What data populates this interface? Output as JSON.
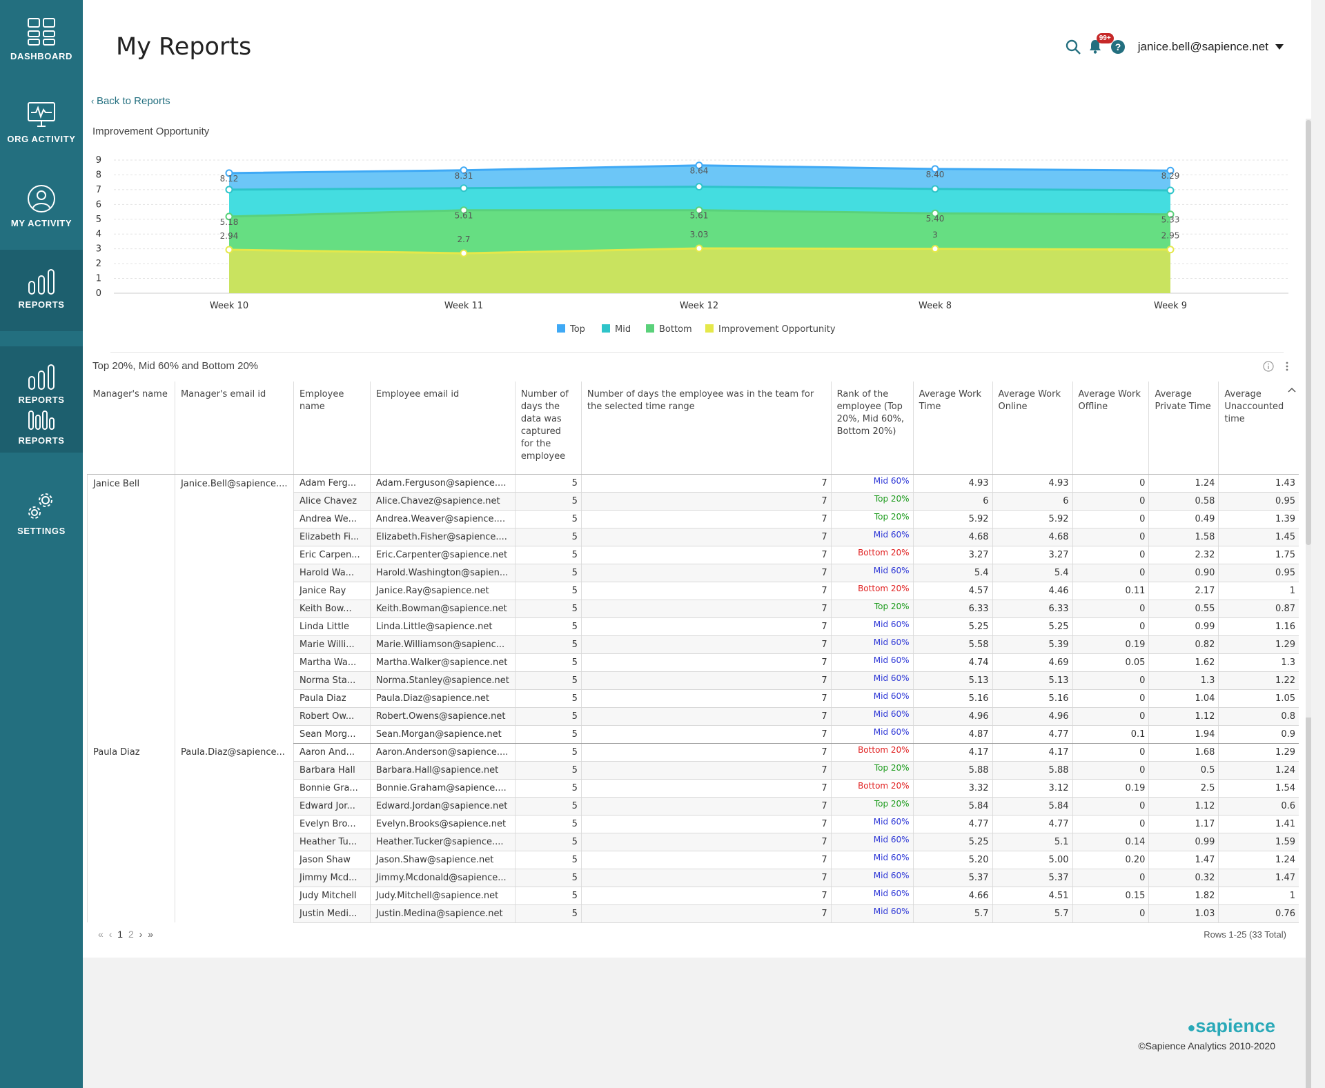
{
  "sidebar": {
    "items": [
      {
        "label": "DASHBOARD",
        "icon": "dashboard-icon"
      },
      {
        "label": "ORG ACTIVITY",
        "icon": "monitor-icon"
      },
      {
        "label": "MY ACTIVITY",
        "icon": "user-icon"
      },
      {
        "label": "REPORTS",
        "icon": "reports-icon"
      },
      {
        "label": "REPORTS",
        "icon": "reports-icon"
      },
      {
        "label": "REPORTS",
        "icon": "reports-icon"
      },
      {
        "label": "SETTINGS",
        "icon": "gear-icon"
      }
    ]
  },
  "header": {
    "title": "My Reports",
    "notifications_badge": "99+",
    "user": "janice.bell@sapience.net",
    "icons": [
      "search-icon",
      "bell-icon",
      "help-icon",
      "caret-down-icon"
    ]
  },
  "back_link": "Back to Reports",
  "chart_section": {
    "title": "Improvement Opportunity"
  },
  "chart_data": {
    "type": "area",
    "categories": [
      "Week 10",
      "Week 11",
      "Week 12",
      "Week 8",
      "Week 9"
    ],
    "ylim": [
      0,
      9
    ],
    "yticks": [
      "0",
      "1",
      "2",
      "3",
      "4",
      "5",
      "6",
      "7",
      "8",
      "9"
    ],
    "grid": true,
    "legend_position": "bottom",
    "series": [
      {
        "name": "Top",
        "color": "#6cc6f7",
        "line": "#3fa9f5",
        "values": [
          8.12,
          8.31,
          8.64,
          8.4,
          8.29
        ],
        "labels": [
          "8.12",
          "8.31",
          "8.64",
          "8.40",
          "8.29"
        ]
      },
      {
        "name": "Mid",
        "color": "#44dde0",
        "line": "#2ec4c9",
        "values": [
          7.0,
          7.1,
          7.2,
          7.05,
          6.95
        ],
        "labels": []
      },
      {
        "name": "Bottom",
        "color": "#66de82",
        "line": "#5ad17a",
        "values": [
          5.18,
          5.61,
          5.61,
          5.4,
          5.33
        ],
        "labels": [
          "5.18",
          "5.61",
          "5.61",
          "5.40",
          "5.33"
        ]
      },
      {
        "name": "Improvement Opportunity",
        "color": "#c9e35f",
        "line": "#e5e84a",
        "values": [
          2.94,
          2.7,
          3.03,
          3,
          2.95
        ],
        "labels": [
          "2.94",
          "2.7",
          "3.03",
          "3",
          "2.95"
        ]
      }
    ]
  },
  "table_section": {
    "title": "Top 20%, Mid 60% and Bottom 20%"
  },
  "table": {
    "headers": [
      "Manager's name",
      "Manager's email id",
      "Employee name",
      "Employee email id",
      "Number of days the data was captured for the employee",
      "Number of days the employee was in the team for the selected time range",
      "Rank of the employee (Top 20%, Mid 60%, Bottom 20%)",
      "Average Work Time",
      "Average Work Online",
      "Average Work Offline",
      "Average Private Time",
      "Average Unaccounted time"
    ],
    "groups": [
      {
        "manager": "Janice Bell",
        "manager_email": "Janice.Bell@sapience....",
        "rows": [
          [
            "Adam Ferg...",
            "Adam.Ferguson@sapience....",
            "5",
            "7",
            "Mid 60%",
            "4.93",
            "4.93",
            "0",
            "1.24",
            "1.43"
          ],
          [
            "Alice Chavez",
            "Alice.Chavez@sapience.net",
            "5",
            "7",
            "Top 20%",
            "6",
            "6",
            "0",
            "0.58",
            "0.95"
          ],
          [
            "Andrea We...",
            "Andrea.Weaver@sapience....",
            "5",
            "7",
            "Top 20%",
            "5.92",
            "5.92",
            "0",
            "0.49",
            "1.39"
          ],
          [
            "Elizabeth Fi...",
            "Elizabeth.Fisher@sapience....",
            "5",
            "7",
            "Mid 60%",
            "4.68",
            "4.68",
            "0",
            "1.58",
            "1.45"
          ],
          [
            "Eric Carpen...",
            "Eric.Carpenter@sapience.net",
            "5",
            "7",
            "Bottom 20%",
            "3.27",
            "3.27",
            "0",
            "2.32",
            "1.75"
          ],
          [
            "Harold Wa...",
            "Harold.Washington@sapien...",
            "5",
            "7",
            "Mid 60%",
            "5.4",
            "5.4",
            "0",
            "0.90",
            "0.95"
          ],
          [
            "Janice Ray",
            "Janice.Ray@sapience.net",
            "5",
            "7",
            "Bottom 20%",
            "4.57",
            "4.46",
            "0.11",
            "2.17",
            "1"
          ],
          [
            "Keith Bow...",
            "Keith.Bowman@sapience.net",
            "5",
            "7",
            "Top 20%",
            "6.33",
            "6.33",
            "0",
            "0.55",
            "0.87"
          ],
          [
            "Linda Little",
            "Linda.Little@sapience.net",
            "5",
            "7",
            "Mid 60%",
            "5.25",
            "5.25",
            "0",
            "0.99",
            "1.16"
          ],
          [
            "Marie Willi...",
            "Marie.Williamson@sapienc...",
            "5",
            "7",
            "Mid 60%",
            "5.58",
            "5.39",
            "0.19",
            "0.82",
            "1.29"
          ],
          [
            "Martha Wa...",
            "Martha.Walker@sapience.net",
            "5",
            "7",
            "Mid 60%",
            "4.74",
            "4.69",
            "0.05",
            "1.62",
            "1.3"
          ],
          [
            "Norma Sta...",
            "Norma.Stanley@sapience.net",
            "5",
            "7",
            "Mid 60%",
            "5.13",
            "5.13",
            "0",
            "1.3",
            "1.22"
          ],
          [
            "Paula Diaz",
            "Paula.Diaz@sapience.net",
            "5",
            "7",
            "Mid 60%",
            "5.16",
            "5.16",
            "0",
            "1.04",
            "1.05"
          ],
          [
            "Robert Ow...",
            "Robert.Owens@sapience.net",
            "5",
            "7",
            "Mid 60%",
            "4.96",
            "4.96",
            "0",
            "1.12",
            "0.8"
          ],
          [
            "Sean Morg...",
            "Sean.Morgan@sapience.net",
            "5",
            "7",
            "Mid 60%",
            "4.87",
            "4.77",
            "0.1",
            "1.94",
            "0.9"
          ]
        ]
      },
      {
        "manager": "Paula Diaz",
        "manager_email": "Paula.Diaz@sapience...",
        "rows": [
          [
            "Aaron And...",
            "Aaron.Anderson@sapience....",
            "5",
            "7",
            "Bottom 20%",
            "4.17",
            "4.17",
            "0",
            "1.68",
            "1.29"
          ],
          [
            "Barbara Hall",
            "Barbara.Hall@sapience.net",
            "5",
            "7",
            "Top 20%",
            "5.88",
            "5.88",
            "0",
            "0.5",
            "1.24"
          ],
          [
            "Bonnie Gra...",
            "Bonnie.Graham@sapience....",
            "5",
            "7",
            "Bottom 20%",
            "3.32",
            "3.12",
            "0.19",
            "2.5",
            "1.54"
          ],
          [
            "Edward Jor...",
            "Edward.Jordan@sapience.net",
            "5",
            "7",
            "Top 20%",
            "5.84",
            "5.84",
            "0",
            "1.12",
            "0.6"
          ],
          [
            "Evelyn Bro...",
            "Evelyn.Brooks@sapience.net",
            "5",
            "7",
            "Mid 60%",
            "4.77",
            "4.77",
            "0",
            "1.17",
            "1.41"
          ],
          [
            "Heather Tu...",
            "Heather.Tucker@sapience....",
            "5",
            "7",
            "Mid 60%",
            "5.25",
            "5.1",
            "0.14",
            "0.99",
            "1.59"
          ],
          [
            "Jason Shaw",
            "Jason.Shaw@sapience.net",
            "5",
            "7",
            "Mid 60%",
            "5.20",
            "5.00",
            "0.20",
            "1.47",
            "1.24"
          ],
          [
            "Jimmy Mcd...",
            "Jimmy.Mcdonald@sapience...",
            "5",
            "7",
            "Mid 60%",
            "5.37",
            "5.37",
            "0",
            "0.32",
            "1.47"
          ],
          [
            "Judy Mitchell",
            "Judy.Mitchell@sapience.net",
            "5",
            "7",
            "Mid 60%",
            "4.66",
            "4.51",
            "0.15",
            "1.82",
            "1"
          ],
          [
            "Justin Medi...",
            "Justin.Medina@sapience.net",
            "5",
            "7",
            "Mid 60%",
            "5.7",
            "5.7",
            "0",
            "1.03",
            "0.76"
          ]
        ]
      }
    ],
    "rank_colors": {
      "Top 20%": "#1a9a1a",
      "Mid 60%": "#2b35d6",
      "Bottom 20%": "#e02020"
    }
  },
  "pagination": {
    "first": "«",
    "prev": "‹",
    "pages": [
      "1",
      "2"
    ],
    "next": "›",
    "last": "»",
    "rows_info": "Rows 1-25 (33 Total)"
  },
  "footer": {
    "logo": "sapience",
    "copyright": "©Sapience Analytics 2010-2020"
  }
}
